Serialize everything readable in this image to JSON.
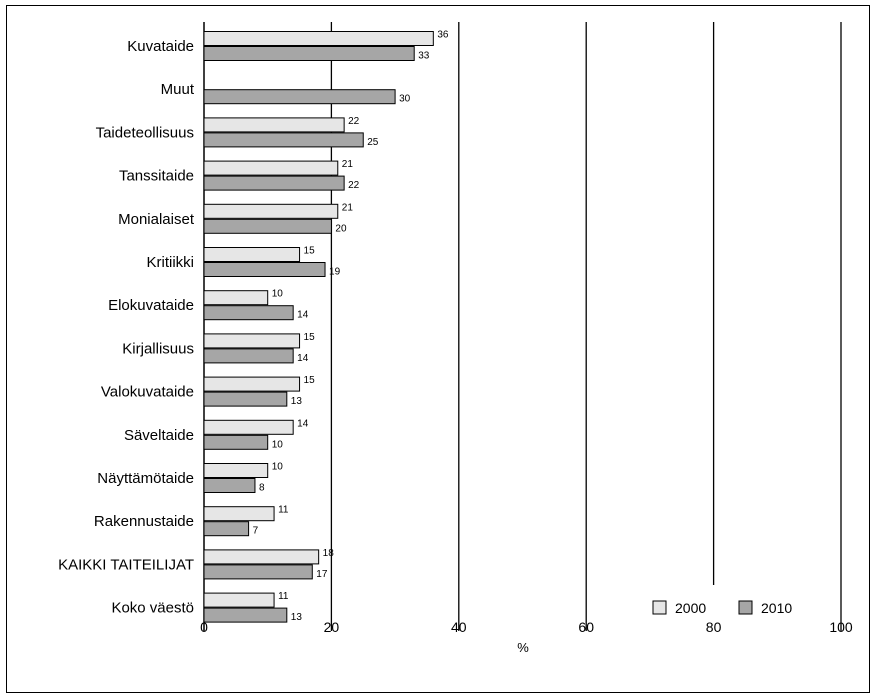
{
  "chart_data": {
    "type": "bar",
    "orientation": "horizontal",
    "categories": [
      "Kuvataide",
      "Muut",
      "Taideteollisuus",
      "Tanssitaide",
      "Monialaiset",
      "Kritiikki",
      "Elokuvataide",
      "Kirjallisuus",
      "Valokuvataide",
      "Säveltaide",
      "Näyttämötaide",
      "Rakennustaide",
      "KAIKKI TAITEILIJAT",
      "Koko väestö"
    ],
    "series": [
      {
        "name": "2000",
        "color": "#e6e6e6",
        "values": [
          36,
          null,
          22,
          21,
          21,
          15,
          10,
          15,
          15,
          14,
          10,
          11,
          18,
          11
        ]
      },
      {
        "name": "2010",
        "color": "#a6a6a6",
        "values": [
          33,
          30,
          25,
          22,
          20,
          19,
          14,
          14,
          13,
          10,
          8,
          7,
          17,
          13
        ]
      }
    ],
    "xlabel": "%",
    "xlim": [
      0,
      100
    ],
    "xticks": [
      0,
      20,
      40,
      60,
      80,
      100
    ],
    "grid": true,
    "legend": "bottom-right"
  }
}
